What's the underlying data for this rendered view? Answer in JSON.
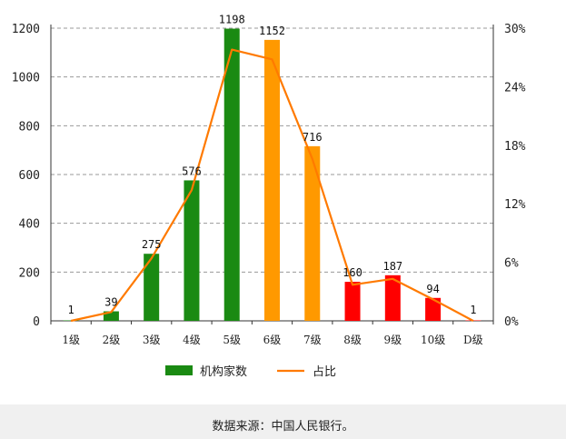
{
  "chart_data": {
    "type": "bar",
    "categories": [
      "1级",
      "2级",
      "3级",
      "4级",
      "5级",
      "6级",
      "7级",
      "8级",
      "9级",
      "10级",
      "D级"
    ],
    "series": [
      {
        "name": "机构家数",
        "type": "bar",
        "axis": "left",
        "values": [
          1,
          39,
          275,
          576,
          1198,
          1152,
          716,
          160,
          187,
          94,
          1
        ],
        "colors": [
          "#1a8a12",
          "#1a8a12",
          "#1a8a12",
          "#1a8a12",
          "#1a8a12",
          "#ff9900",
          "#ff9900",
          "#ff0000",
          "#ff0000",
          "#ff0000",
          "#ff0000"
        ]
      },
      {
        "name": "占比",
        "type": "line",
        "axis": "right",
        "values": [
          0.0,
          0.9,
          6.4,
          13.4,
          27.8,
          26.8,
          16.6,
          3.7,
          4.3,
          2.2,
          0.0
        ],
        "color": "#ff7a00"
      }
    ],
    "yticks": [
      "0",
      "200",
      "400",
      "600",
      "800",
      "1000",
      "1200"
    ],
    "y2ticks": [
      "0%",
      "6%",
      "12%",
      "18%",
      "24%",
      "30%"
    ],
    "ylim": [
      0,
      1200
    ],
    "y2lim": [
      0,
      30
    ],
    "grid": true,
    "legend_position": "bottom"
  },
  "source": "数据来源：中国人民银行。"
}
